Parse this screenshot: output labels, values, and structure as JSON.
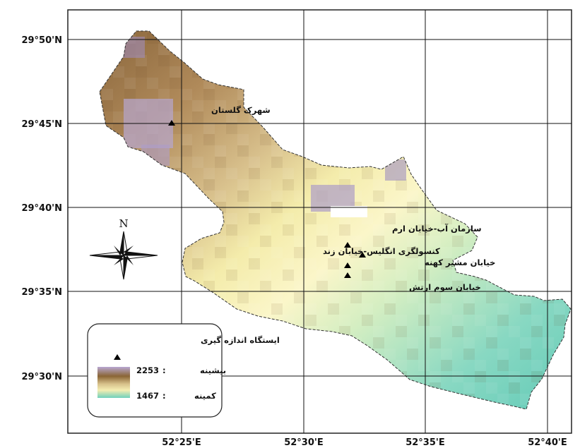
{
  "map": {
    "lat_labels": [
      "29°50'N",
      "29°45'N",
      "29°40'N",
      "29°35'N",
      "29°30'N"
    ],
    "lon_labels": [
      "52°25'E",
      "52°30'E",
      "52°35'E",
      "52°40'E"
    ],
    "north_label": "N",
    "stations": [
      {
        "name": "شهرک گلستان"
      },
      {
        "name": "سازمان آب-خیابان ارم"
      },
      {
        "name": "کنسولگری انگلیس-خیابان زند"
      },
      {
        "name": "خیابان مشیر کهنه"
      },
      {
        "name": "خیابان سوم ارتش"
      }
    ],
    "legend": {
      "title": "ایستگاه اندازه گیری",
      "max_label": "بیشینه",
      "max_value": "2253",
      "min_label": "کمینه",
      "min_value": "1467"
    },
    "colors": {
      "high": "#8a6535",
      "mid_high": "#c8a876",
      "mid": "#f2e8a4",
      "low_mid": "#e2f0c4",
      "low": "#6fd0bc",
      "purple": "#a998c2",
      "grid": "#111111",
      "boundary": "#222222"
    }
  }
}
